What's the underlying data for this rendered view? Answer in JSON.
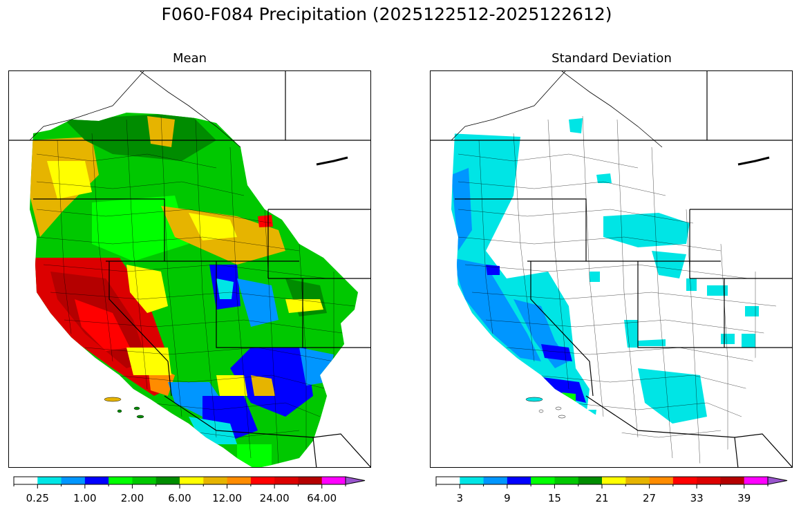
{
  "figure": {
    "title": "F060-F084 Precipitation (2025122512-2025122612)"
  },
  "panels": [
    {
      "id": "mean",
      "title": "Mean",
      "colorbar": {
        "colors": [
          "#ffffff",
          "#00e5e5",
          "#0096ff",
          "#0000ff",
          "#00ff00",
          "#00c800",
          "#008c00",
          "#ffff00",
          "#e6b400",
          "#ff8c00",
          "#ff0000",
          "#dc0000",
          "#b40000",
          "#ff00ff",
          "#9955cc"
        ],
        "tick_labels": [
          "0.25",
          "1.00",
          "2.00",
          "6.00",
          "12.00",
          "24.00",
          "64.00"
        ],
        "tick_boundaries": [
          1,
          3,
          5,
          7,
          9,
          11,
          13
        ],
        "extend": "max"
      }
    },
    {
      "id": "stddev",
      "title": "Standard Deviation",
      "colorbar": {
        "colors": [
          "#ffffff",
          "#00e5e5",
          "#0096ff",
          "#0000ff",
          "#00ff00",
          "#00c800",
          "#008c00",
          "#ffff00",
          "#e6b400",
          "#ff8c00",
          "#ff0000",
          "#dc0000",
          "#b40000",
          "#ff00ff",
          "#9955cc"
        ],
        "tick_labels": [
          "3",
          "9",
          "15",
          "21",
          "27",
          "33",
          "39"
        ],
        "tick_boundaries": [
          1,
          3,
          5,
          7,
          9,
          11,
          13
        ],
        "extend": "max"
      }
    }
  ]
}
